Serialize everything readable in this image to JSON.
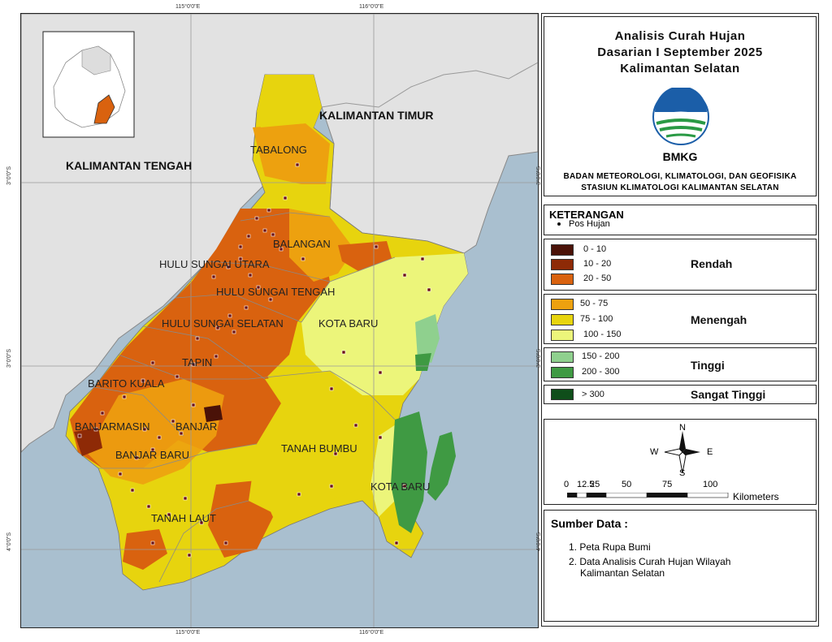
{
  "coords": {
    "top": [
      "115°0'0\"E",
      "116°0'0\"E"
    ],
    "bottom": [
      "115°0'0\"E",
      "116°0'0\"E"
    ],
    "left": [
      "3°0'0\"S",
      "3°0'0\"S",
      "4°0'0\"S"
    ],
    "right": [
      "3°0'0\"S",
      "3°0'0\"S",
      "4°0'0\"S"
    ]
  },
  "map": {
    "provinces": [
      "KALIMANTAN TENGAH",
      "KALIMANTAN TIMUR"
    ],
    "regions": [
      "TABALONG",
      "BALANGAN",
      "HULU SUNGAI UTARA",
      "HULU SUNGAI TENGAH",
      "HULU SUNGAI SELATAN",
      "KOTA BARU",
      "TAPIN",
      "BARITO KUALA",
      "BANJARMASIN",
      "BANJAR",
      "BANJAR BARU",
      "TANAH BUMBU",
      "KOTA BARU",
      "TANAH LAUT"
    ]
  },
  "title": {
    "line1": "Analisis Curah Hujan",
    "line2": "Dasarian I September 2025",
    "line3": "Kalimantan Selatan"
  },
  "logo": {
    "text": "BMKG",
    "icon": "bmkg-logo"
  },
  "agency": {
    "line1": "BADAN METEOROLOGI, KLIMATOLOGI, DAN GEOFISIKA",
    "line2": "STASIUN KLIMATOLOGI KALIMANTAN SELATAN"
  },
  "legend": {
    "heading": "KETERANGAN",
    "station": "Pos Hujan",
    "groups": [
      {
        "category": "Rendah",
        "items": [
          {
            "range": "0 - 10",
            "color": "#4a1208"
          },
          {
            "range": "10 - 20",
            "color": "#8e2a06"
          },
          {
            "range": "20 - 50",
            "color": "#d9620f"
          }
        ]
      },
      {
        "category": "Menengah",
        "items": [
          {
            "range": "50 - 75",
            "color": "#eda10f"
          },
          {
            "range": "75 - 100",
            "color": "#e7d40e"
          },
          {
            "range": "100 - 150",
            "color": "#ecf57a"
          }
        ]
      },
      {
        "category": "Tinggi",
        "items": [
          {
            "range": "150 - 200",
            "color": "#8fd08e"
          },
          {
            "range": "200 - 300",
            "color": "#3f9a43"
          }
        ]
      },
      {
        "category": "Sangat Tinggi",
        "items": [
          {
            "range": "> 300",
            "color": "#0f4e1a"
          }
        ]
      }
    ]
  },
  "compass": {
    "n": "N",
    "s": "S",
    "e": "E",
    "w": "W"
  },
  "scale": {
    "ticks": [
      "0",
      "12.5",
      "25",
      "50",
      "75",
      "100"
    ],
    "unit": "Kilometers"
  },
  "sources": {
    "heading": "Sumber Data :",
    "items": [
      "1. Peta Rupa Bumi",
      "2. Data Analisis Curah Hujan Wilayah",
      "Kalimantan Selatan"
    ]
  }
}
